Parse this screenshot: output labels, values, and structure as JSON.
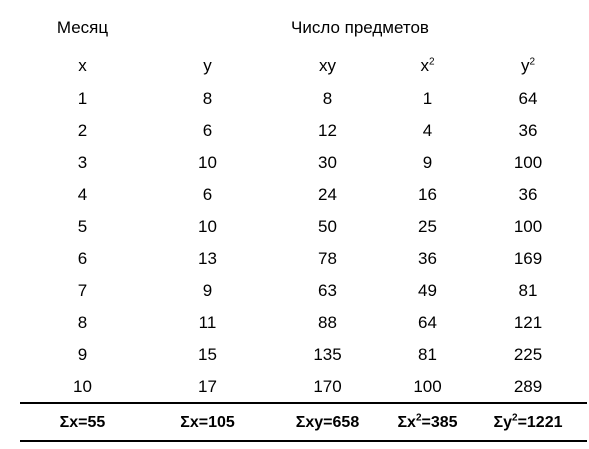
{
  "header": {
    "col1_title": "Месяц",
    "group_title": "Число предметов",
    "col_x": "x",
    "col_y": "y",
    "col_xy": "xy",
    "col_x2_base": "x",
    "col_x2_exp": "2",
    "col_y2_base": "y",
    "col_y2_exp": "2"
  },
  "rows": [
    {
      "x": "1",
      "y": "8",
      "xy": "8",
      "x2": "1",
      "y2": "64"
    },
    {
      "x": "2",
      "y": "6",
      "xy": "12",
      "x2": "4",
      "y2": "36"
    },
    {
      "x": "3",
      "y": "10",
      "xy": "30",
      "x2": "9",
      "y2": "100"
    },
    {
      "x": "4",
      "y": "6",
      "xy": "24",
      "x2": "16",
      "y2": "36"
    },
    {
      "x": "5",
      "y": "10",
      "xy": "50",
      "x2": "25",
      "y2": "100"
    },
    {
      "x": "6",
      "y": "13",
      "xy": "78",
      "x2": "36",
      "y2": "169"
    },
    {
      "x": "7",
      "y": "9",
      "xy": "63",
      "x2": "49",
      "y2": "81"
    },
    {
      "x": "8",
      "y": "11",
      "xy": "88",
      "x2": "64",
      "y2": "121"
    },
    {
      "x": "9",
      "y": "15",
      "xy": "135",
      "x2": "81",
      "y2": "225"
    },
    {
      "x": "10",
      "y": "17",
      "xy": "170",
      "x2": "100",
      "y2": "289"
    }
  ],
  "totals": {
    "sum_x": "Σx=55",
    "sum_y": "Σx=105",
    "sum_xy": "Σxy=658",
    "sum_x2_pre": "Σx",
    "sum_x2_exp": "2",
    "sum_x2_post": "=385",
    "sum_y2_pre": "Σy",
    "sum_y2_exp": "2",
    "sum_y2_post": "=1221"
  }
}
